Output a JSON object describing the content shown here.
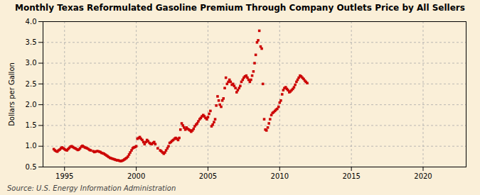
{
  "chart_data": {
    "type": "scatter",
    "title": "Monthly Texas Reformulated Gasoline Premium Through Company Outlets Price by All Sellers",
    "ylabel": "Dollars per Gallon",
    "source": "Source: U.S. Energy Information Administration",
    "background_color": "#faefd8",
    "color": "#cc0000",
    "marker": "square",
    "grid": true,
    "xlim": [
      1993.5,
      2023.0
    ],
    "xticks": [
      1995,
      2000,
      2005,
      2010,
      2015,
      2020
    ],
    "ylim": [
      0.5,
      4.0
    ],
    "yticks": [
      0.5,
      {
        "value": 1.0,
        "label": "1.0"
      },
      1.5,
      {
        "value": 2.0,
        "label": "2.0"
      },
      2.5,
      {
        "value": 3.0,
        "label": "3.0"
      },
      3.5,
      {
        "value": 4.0,
        "label": "4.0"
      }
    ],
    "x": [
      1994.25,
      1994.33,
      1994.42,
      1994.5,
      1994.58,
      1994.67,
      1994.75,
      1994.83,
      1994.92,
      1995.0,
      1995.08,
      1995.17,
      1995.25,
      1995.33,
      1995.42,
      1995.5,
      1995.58,
      1995.67,
      1995.75,
      1995.83,
      1995.92,
      1996.0,
      1996.08,
      1996.17,
      1996.25,
      1996.33,
      1996.42,
      1996.5,
      1996.58,
      1996.67,
      1996.75,
      1996.83,
      1997.0,
      1997.08,
      1997.17,
      1997.25,
      1997.33,
      1997.42,
      1997.5,
      1997.58,
      1997.67,
      1997.75,
      1997.83,
      1997.92,
      1998.0,
      1998.08,
      1998.17,
      1998.25,
      1998.33,
      1998.42,
      1998.5,
      1998.58,
      1998.67,
      1998.75,
      1998.83,
      1998.92,
      1999.0,
      1999.08,
      1999.17,
      1999.25,
      1999.33,
      1999.42,
      1999.5,
      1999.58,
      1999.67,
      1999.75,
      1999.83,
      1999.92,
      2000.0,
      2000.08,
      2000.17,
      2000.25,
      2000.33,
      2000.42,
      2000.5,
      2000.58,
      2000.67,
      2000.75,
      2000.83,
      2000.92,
      2001.0,
      2001.08,
      2001.17,
      2001.25,
      2001.33,
      2001.5,
      2001.67,
      2001.75,
      2001.83,
      2001.92,
      2002.0,
      2002.08,
      2002.17,
      2002.25,
      2002.33,
      2002.42,
      2002.5,
      2002.58,
      2002.67,
      2002.75,
      2002.83,
      2002.92,
      2003.0,
      2003.08,
      2003.17,
      2003.25,
      2003.33,
      2003.42,
      2003.5,
      2003.58,
      2003.67,
      2003.75,
      2003.83,
      2003.92,
      2004.0,
      2004.08,
      2004.17,
      2004.25,
      2004.33,
      2004.42,
      2004.5,
      2004.58,
      2004.67,
      2004.75,
      2004.83,
      2004.92,
      2005.0,
      2005.08,
      2005.17,
      2005.25,
      2005.33,
      2005.42,
      2005.5,
      2005.58,
      2005.67,
      2005.75,
      2005.83,
      2005.92,
      2006.0,
      2006.08,
      2006.17,
      2006.25,
      2006.33,
      2006.42,
      2006.5,
      2006.58,
      2006.67,
      2006.75,
      2006.83,
      2006.92,
      2007.0,
      2007.08,
      2007.17,
      2007.25,
      2007.33,
      2007.42,
      2007.5,
      2007.58,
      2007.67,
      2007.75,
      2007.83,
      2007.92,
      2008.0,
      2008.08,
      2008.17,
      2008.25,
      2008.33,
      2008.42,
      2008.5,
      2008.58,
      2008.67,
      2008.75,
      2008.83,
      2008.92,
      2009.0,
      2009.08,
      2009.17,
      2009.25,
      2009.33,
      2009.42,
      2009.5,
      2009.58,
      2009.67,
      2009.75,
      2009.83,
      2009.92,
      2010.0,
      2010.08,
      2010.17,
      2010.25,
      2010.33,
      2010.42,
      2010.5,
      2010.58,
      2010.67,
      2010.75,
      2010.83,
      2010.92,
      2011.0,
      2011.08,
      2011.17,
      2011.25,
      2011.33,
      2011.42,
      2011.5,
      2011.58,
      2011.67,
      2011.75,
      2011.83,
      2011.92
    ],
    "values": [
      0.93,
      0.9,
      0.88,
      0.87,
      0.9,
      0.92,
      0.95,
      0.97,
      0.95,
      0.93,
      0.91,
      0.9,
      0.93,
      0.96,
      0.99,
      1.0,
      0.98,
      0.96,
      0.95,
      0.93,
      0.91,
      0.92,
      0.95,
      0.99,
      1.01,
      0.99,
      0.97,
      0.96,
      0.95,
      0.93,
      0.91,
      0.9,
      0.88,
      0.86,
      0.87,
      0.88,
      0.88,
      0.87,
      0.86,
      0.84,
      0.83,
      0.82,
      0.8,
      0.78,
      0.76,
      0.74,
      0.72,
      0.71,
      0.7,
      0.69,
      0.68,
      0.67,
      0.66,
      0.66,
      0.65,
      0.64,
      0.65,
      0.66,
      0.68,
      0.7,
      0.72,
      0.75,
      0.8,
      0.85,
      0.9,
      0.95,
      0.97,
      0.98,
      1.0,
      1.18,
      1.2,
      1.22,
      1.18,
      1.15,
      1.1,
      1.05,
      1.1,
      1.15,
      1.12,
      1.08,
      1.06,
      1.05,
      1.08,
      1.1,
      1.05,
      0.95,
      0.9,
      0.88,
      0.85,
      0.82,
      0.85,
      0.9,
      0.95,
      1.0,
      1.08,
      1.1,
      1.13,
      1.15,
      1.18,
      1.2,
      1.18,
      1.15,
      1.2,
      1.4,
      1.55,
      1.5,
      1.45,
      1.4,
      1.45,
      1.42,
      1.4,
      1.38,
      1.35,
      1.38,
      1.42,
      1.48,
      1.52,
      1.55,
      1.6,
      1.65,
      1.68,
      1.72,
      1.75,
      1.72,
      1.68,
      1.65,
      1.7,
      1.78,
      1.85,
      1.48,
      1.52,
      1.58,
      1.65,
      1.98,
      2.2,
      2.1,
      2.0,
      1.95,
      2.1,
      2.15,
      2.4,
      2.65,
      2.5,
      2.55,
      2.6,
      2.55,
      2.48,
      2.5,
      2.45,
      2.4,
      2.3,
      2.35,
      2.4,
      2.45,
      2.55,
      2.6,
      2.65,
      2.68,
      2.7,
      2.65,
      2.6,
      2.55,
      2.6,
      2.7,
      2.8,
      3.0,
      3.2,
      3.5,
      3.55,
      3.78,
      3.4,
      3.35,
      2.5,
      1.65,
      1.4,
      1.38,
      1.45,
      1.55,
      1.65,
      1.75,
      1.8,
      1.82,
      1.85,
      1.88,
      1.9,
      1.95,
      2.05,
      2.1,
      2.25,
      2.35,
      2.4,
      2.42,
      2.38,
      2.35,
      2.3,
      2.32,
      2.35,
      2.38,
      2.42,
      2.48,
      2.55,
      2.6,
      2.65,
      2.7,
      2.68,
      2.65,
      2.62,
      2.58,
      2.55,
      2.52
    ]
  }
}
